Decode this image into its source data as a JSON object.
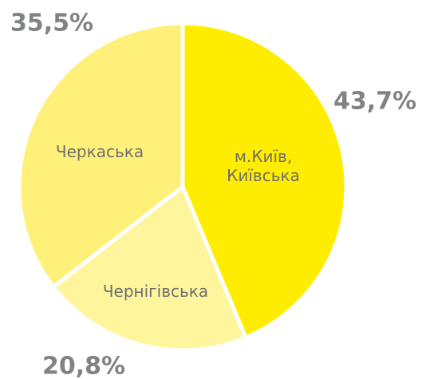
{
  "chart_data": {
    "type": "pie",
    "categories": [
      "м.Київ, Київська",
      "Чернігівська",
      "Черкаська"
    ],
    "values": [
      43.7,
      20.8,
      35.5
    ],
    "value_labels": [
      "43,7%",
      "20,8%",
      "35,5%"
    ],
    "colors": [
      "#ffed00",
      "#fff59c",
      "#fff07a"
    ]
  }
}
